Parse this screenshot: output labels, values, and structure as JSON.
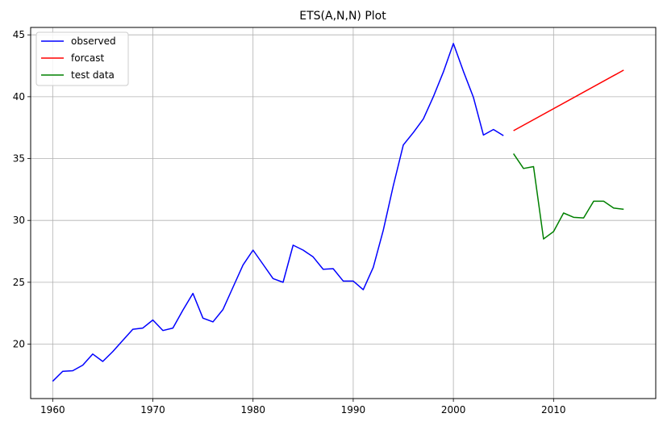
{
  "chart_data": {
    "type": "line",
    "title": "ETS(A,N,N) Plot",
    "xlabel": "",
    "ylabel": "",
    "xlim": [
      1957.8,
      2020.2
    ],
    "ylim": [
      15.6,
      45.6
    ],
    "xticks": [
      1960,
      1970,
      1980,
      1990,
      2000,
      2010
    ],
    "yticks": [
      20,
      25,
      30,
      35,
      40,
      45
    ],
    "grid": true,
    "legend_position": "top-left",
    "series": [
      {
        "name": "observed",
        "color": "#0000ff",
        "x": [
          1960,
          1961,
          1962,
          1963,
          1964,
          1965,
          1966,
          1967,
          1968,
          1969,
          1970,
          1971,
          1972,
          1973,
          1974,
          1975,
          1976,
          1977,
          1978,
          1979,
          1980,
          1981,
          1982,
          1983,
          1984,
          1985,
          1986,
          1987,
          1988,
          1989,
          1990,
          1991,
          1992,
          1993,
          1994,
          1995,
          1996,
          1997,
          1998,
          1999,
          2000,
          2001,
          2002,
          2003,
          2004,
          2005
        ],
        "values": [
          17.0,
          17.8,
          17.85,
          18.3,
          19.2,
          18.6,
          19.4,
          20.3,
          21.2,
          21.3,
          21.95,
          21.1,
          21.3,
          22.75,
          24.1,
          22.1,
          21.8,
          22.8,
          24.6,
          26.4,
          27.6,
          26.45,
          25.3,
          25.0,
          28.0,
          27.6,
          27.05,
          26.05,
          26.1,
          25.1,
          25.1,
          24.4,
          26.2,
          29.2,
          32.8,
          36.1,
          37.1,
          38.2,
          40.0,
          42.0,
          44.3,
          42.05,
          39.95,
          36.9,
          37.35,
          36.85
        ]
      },
      {
        "name": "forcast",
        "color": "#ff0000",
        "x": [
          2006,
          2017
        ],
        "values": [
          37.25,
          42.15
        ]
      },
      {
        "name": "test data",
        "color": "#008000",
        "x": [
          2006,
          2007,
          2008,
          2009,
          2010,
          2011,
          2012,
          2013,
          2014,
          2015,
          2016,
          2017
        ],
        "values": [
          35.4,
          34.2,
          34.35,
          28.5,
          29.1,
          30.6,
          30.25,
          30.2,
          31.55,
          31.55,
          31.0,
          30.9
        ]
      }
    ]
  }
}
